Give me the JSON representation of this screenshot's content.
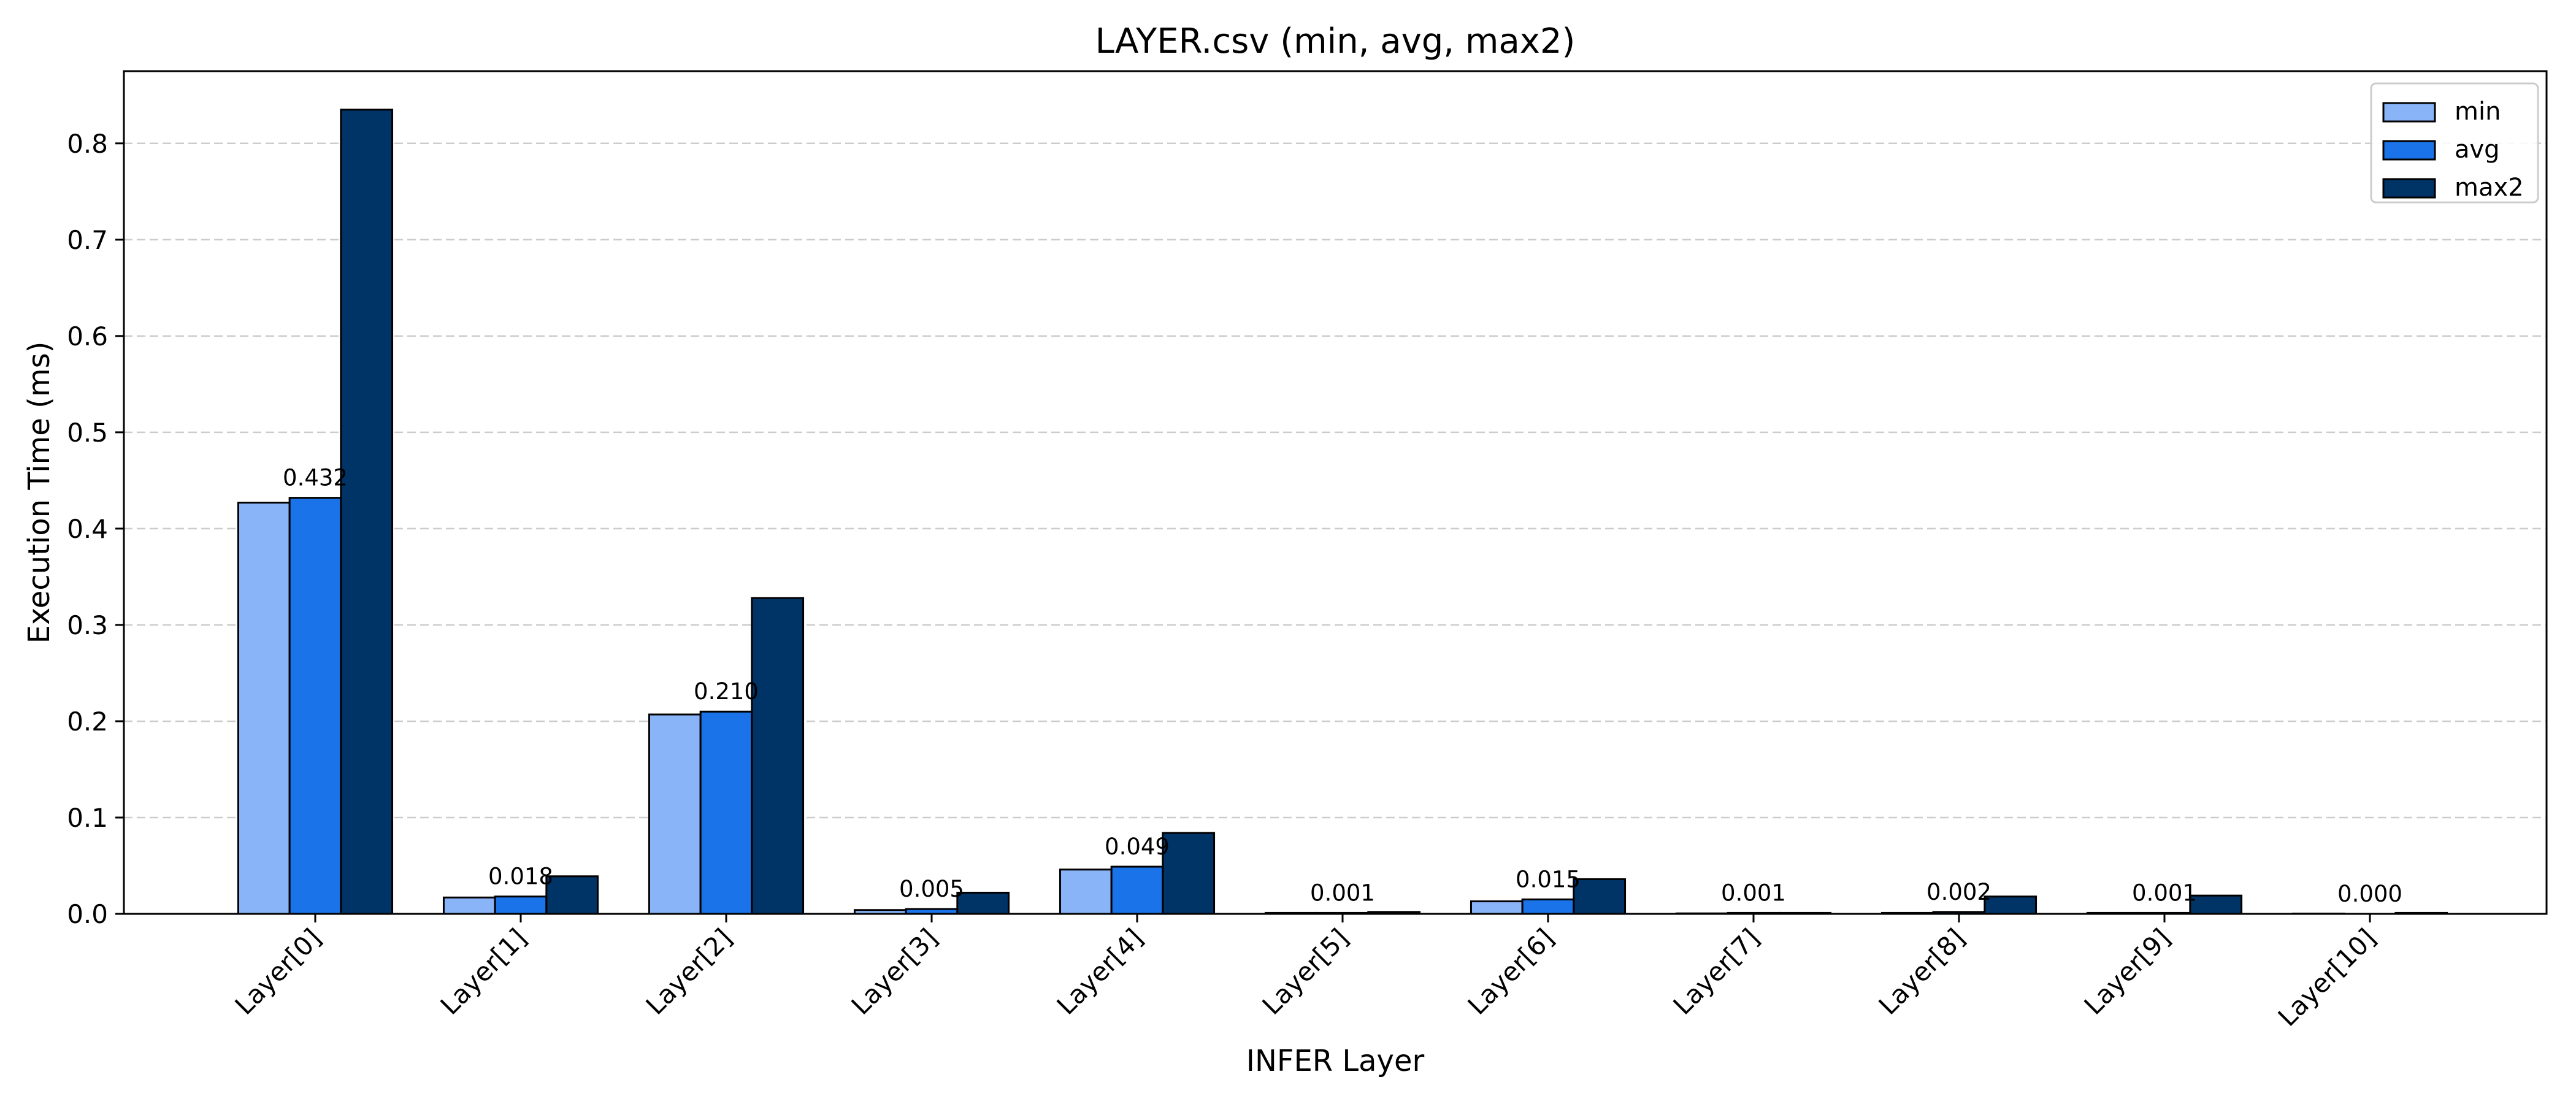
{
  "chart_data": {
    "type": "bar",
    "title": "LAYER.csv (min, avg, max2)",
    "xlabel": "INFER Layer",
    "ylabel": "Execution Time (ms)",
    "categories": [
      "Layer[0]",
      "Layer[1]",
      "Layer[2]",
      "Layer[3]",
      "Layer[4]",
      "Layer[5]",
      "Layer[6]",
      "Layer[7]",
      "Layer[8]",
      "Layer[9]",
      "Layer[10]"
    ],
    "series": [
      {
        "name": "min",
        "color": "#8ab4f8",
        "values": [
          0.427,
          0.017,
          0.207,
          0.004,
          0.046,
          0.001,
          0.013,
          0.0005,
          0.001,
          0.001,
          0.0003
        ]
      },
      {
        "name": "avg",
        "color": "#1a73e8",
        "values": [
          0.432,
          0.018,
          0.21,
          0.005,
          0.049,
          0.001,
          0.015,
          0.001,
          0.002,
          0.001,
          0.0
        ]
      },
      {
        "name": "max2",
        "color": "#003366",
        "values": [
          0.835,
          0.039,
          0.328,
          0.022,
          0.084,
          0.002,
          0.036,
          0.001,
          0.018,
          0.019,
          0.001
        ]
      }
    ],
    "data_labels": [
      "0.432",
      "0.018",
      "0.210",
      "0.005",
      "0.049",
      "0.001",
      "0.015",
      "0.001",
      "0.002",
      "0.001",
      "0.000"
    ],
    "yticks": [
      "0.0",
      "0.1",
      "0.2",
      "0.3",
      "0.4",
      "0.5",
      "0.6",
      "0.7",
      "0.8"
    ],
    "ylim": [
      0,
      0.875
    ],
    "grid": "y-dashed",
    "legend_position": "top-right",
    "edge_color": "#000000",
    "grid_color": "#cccccc"
  }
}
